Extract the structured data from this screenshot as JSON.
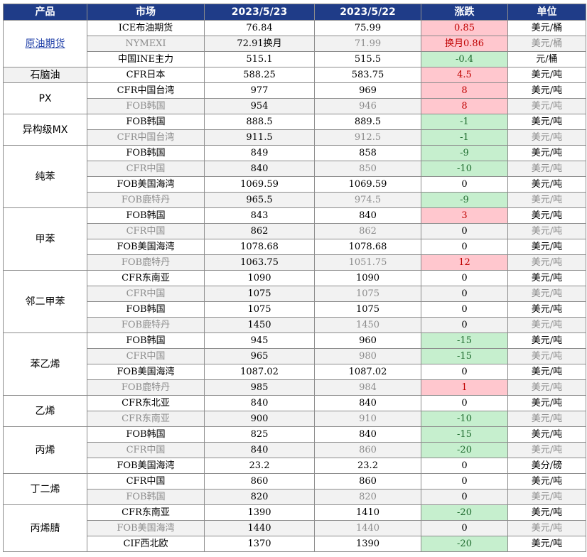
{
  "headers": [
    "产品",
    "市场",
    "2023/5/23",
    "2023/5/22",
    "涨跌",
    "单位"
  ],
  "colors": {
    "header_bg": "#1f3c88",
    "up_bg": "#ffc7ce",
    "up_text": "#c00000",
    "down_bg": "#c6efce",
    "down_text": "#1e6b2e",
    "alt_bg": "#f2f2f2",
    "link": "#1f3fa8"
  },
  "groups": [
    {
      "product": "原油期货",
      "link": true,
      "rows": [
        {
          "market": "ICE布油期货",
          "today": "76.84",
          "prev": "75.99",
          "change": "0.85",
          "dir": "up",
          "unit": "美元/桶"
        },
        {
          "market": "NYMEXI",
          "today": "72.91换月",
          "prev": "71.99",
          "change": "换月0.86",
          "dir": "up",
          "unit": "美元/桶"
        },
        {
          "market": "中国INE主力",
          "today": "515.1",
          "prev": "515.5",
          "change": "-0.4",
          "dir": "down",
          "unit": "元/桶"
        }
      ]
    },
    {
      "product": "石脑油",
      "rows": [
        {
          "market": "CFR日本",
          "today": "588.25",
          "prev": "583.75",
          "change": "4.5",
          "dir": "up",
          "unit": "美元/吨"
        }
      ]
    },
    {
      "product": "PX",
      "rows": [
        {
          "market": "CFR中国台湾",
          "today": "977",
          "prev": "969",
          "change": "8",
          "dir": "up",
          "unit": "美元/吨"
        },
        {
          "market": "FOB韩国",
          "today": "954",
          "prev": "946",
          "change": "8",
          "dir": "up",
          "unit": "美元/吨"
        }
      ]
    },
    {
      "product": "异构级MX",
      "rows": [
        {
          "market": "FOB韩国",
          "today": "888.5",
          "prev": "889.5",
          "change": "-1",
          "dir": "down",
          "unit": "美元/吨"
        },
        {
          "market": "CFR中国台湾",
          "today": "911.5",
          "prev": "912.5",
          "change": "-1",
          "dir": "down",
          "unit": "美元/吨"
        }
      ]
    },
    {
      "product": "纯苯",
      "rows": [
        {
          "market": "FOB韩国",
          "today": "849",
          "prev": "858",
          "change": "-9",
          "dir": "down",
          "unit": "美元/吨"
        },
        {
          "market": "CFR中国",
          "today": "840",
          "prev": "850",
          "change": "-10",
          "dir": "down",
          "unit": "美元/吨"
        },
        {
          "market": "FOB美国海湾",
          "today": "1069.59",
          "prev": "1069.59",
          "change": "0",
          "dir": "flat",
          "unit": "美元/吨"
        },
        {
          "market": "FOB鹿特丹",
          "today": "965.5",
          "prev": "974.5",
          "change": "-9",
          "dir": "down",
          "unit": "美元/吨"
        }
      ]
    },
    {
      "product": "甲苯",
      "rows": [
        {
          "market": "FOB韩国",
          "today": "843",
          "prev": "840",
          "change": "3",
          "dir": "up",
          "unit": "美元/吨"
        },
        {
          "market": "CFR中国",
          "today": "862",
          "prev": "862",
          "change": "0",
          "dir": "flat",
          "unit": "美元/吨"
        },
        {
          "market": "FOB美国海湾",
          "today": "1078.68",
          "prev": "1078.68",
          "change": "0",
          "dir": "flat",
          "unit": "美元/吨"
        },
        {
          "market": "FOB鹿特丹",
          "today": "1063.75",
          "prev": "1051.75",
          "change": "12",
          "dir": "up",
          "unit": "美元/吨"
        }
      ]
    },
    {
      "product": "邻二甲苯",
      "rows": [
        {
          "market": "CFR东南亚",
          "today": "1090",
          "prev": "1090",
          "change": "0",
          "dir": "flat",
          "unit": "美元/吨"
        },
        {
          "market": "CFR中国",
          "today": "1075",
          "prev": "1075",
          "change": "0",
          "dir": "flat",
          "unit": "美元/吨"
        },
        {
          "market": "FOB韩国",
          "today": "1075",
          "prev": "1075",
          "change": "0",
          "dir": "flat",
          "unit": "美元/吨"
        },
        {
          "market": "FOB鹿特丹",
          "today": "1450",
          "prev": "1450",
          "change": "0",
          "dir": "flat",
          "unit": "美元/吨"
        }
      ]
    },
    {
      "product": "苯乙烯",
      "rows": [
        {
          "market": "FOB韩国",
          "today": "945",
          "prev": "960",
          "change": "-15",
          "dir": "down",
          "unit": "美元/吨"
        },
        {
          "market": "CFR中国",
          "today": "965",
          "prev": "980",
          "change": "-15",
          "dir": "down",
          "unit": "美元/吨"
        },
        {
          "market": "FOB美国海湾",
          "today": "1087.02",
          "prev": "1087.02",
          "change": "0",
          "dir": "flat",
          "unit": "美元/吨"
        },
        {
          "market": "FOB鹿特丹",
          "today": "985",
          "prev": "984",
          "change": "1",
          "dir": "up",
          "unit": "美元/吨"
        }
      ]
    },
    {
      "product": "乙烯",
      "rows": [
        {
          "market": "CFR东北亚",
          "today": "840",
          "prev": "840",
          "change": "0",
          "dir": "flat",
          "unit": "美元/吨"
        },
        {
          "market": "CFR东南亚",
          "today": "900",
          "prev": "910",
          "change": "-10",
          "dir": "down",
          "unit": "美元/吨"
        }
      ]
    },
    {
      "product": "丙烯",
      "rows": [
        {
          "market": "FOB韩国",
          "today": "825",
          "prev": "840",
          "change": "-15",
          "dir": "down",
          "unit": "美元/吨"
        },
        {
          "market": "CFR中国",
          "today": "840",
          "prev": "860",
          "change": "-20",
          "dir": "down",
          "unit": "美元/吨"
        },
        {
          "market": "FOB美国海湾",
          "today": "23.2",
          "prev": "23.2",
          "change": "0",
          "dir": "flat",
          "unit": "美分/磅"
        }
      ]
    },
    {
      "product": "丁二烯",
      "rows": [
        {
          "market": "CFR中国",
          "today": "860",
          "prev": "860",
          "change": "0",
          "dir": "flat",
          "unit": "美元/吨"
        },
        {
          "market": "FOB韩国",
          "today": "820",
          "prev": "820",
          "change": "0",
          "dir": "flat",
          "unit": "美元/吨"
        }
      ]
    },
    {
      "product": "丙烯腈",
      "rows": [
        {
          "market": "CFR东南亚",
          "today": "1390",
          "prev": "1410",
          "change": "-20",
          "dir": "down",
          "unit": "美元/吨"
        },
        {
          "market": "FOB美国海湾",
          "today": "1440",
          "prev": "1440",
          "change": "0",
          "dir": "flat",
          "unit": "美元/吨"
        },
        {
          "market": "CIF西北欧",
          "today": "1370",
          "prev": "1390",
          "change": "-20",
          "dir": "down",
          "unit": "美元/吨"
        }
      ]
    }
  ]
}
